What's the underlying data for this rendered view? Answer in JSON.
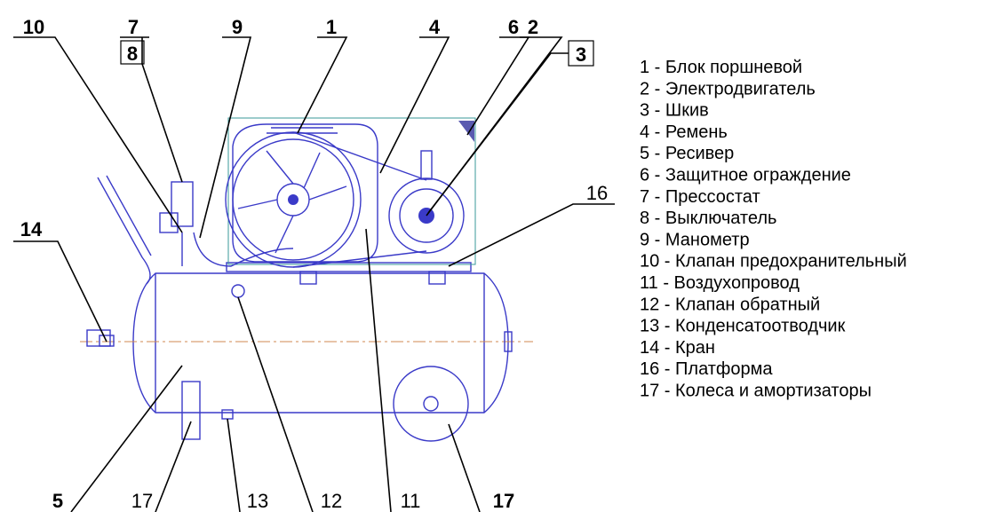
{
  "callouts": [
    "10",
    "7",
    "8",
    "9",
    "1",
    "4",
    "6",
    "2",
    "3",
    "16",
    "14",
    "5",
    "17",
    "13",
    "12",
    "11",
    "17"
  ],
  "legend": [
    "1 - Блок поршневой",
    "2 - Электродвигатель",
    "3 - Шкив",
    "4 - Ремень",
    "5 - Ресивер",
    "6 - Защитное ограждение",
    "7 - Прессостат",
    "8 - Выключатель",
    "9 - Манометр",
    "10 - Клапан предохранительный",
    "11 - Воздухопровод",
    "12 - Клапан обратный",
    "13 - Конденсатоотводчик",
    "14 - Кран",
    "16 - Платформа",
    "17 - Колеса и амортизаторы"
  ]
}
